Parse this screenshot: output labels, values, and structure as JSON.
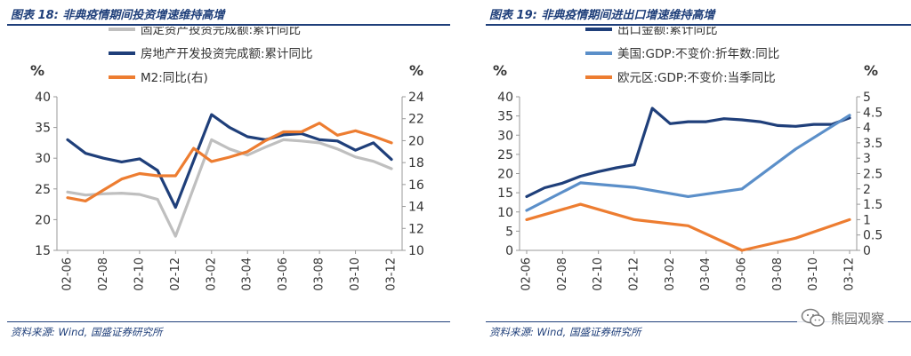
{
  "left": {
    "title": "图表 18:  非典疫情期间投资增速维持高增",
    "source": "资料来源:  Wind,  国盛证券研究所"
  },
  "right": {
    "title": "图表 19:  非典疫情期间进出口增速维持高增",
    "source": "资料来源:  Wind,  国盛证券研究所"
  },
  "watermark": {
    "text": "熊园观察",
    "icon": "wechat-icon"
  },
  "colors": {
    "navy": "#1f3f7a",
    "grey": "#bfbfbf",
    "orange": "#ed7d31",
    "lightblue": "#5b8fc9",
    "text": "#333333"
  },
  "chart_data": [
    {
      "type": "line",
      "x": [
        "02-06",
        "02-07",
        "02-08",
        "02-09",
        "02-10",
        "02-11",
        "02-12",
        "03-01",
        "03-02",
        "03-03",
        "03-04",
        "03-05",
        "03-06",
        "03-07",
        "03-08",
        "03-09",
        "03-10",
        "03-11",
        "03-12"
      ],
      "xticks": [
        "02-06",
        "02-08",
        "02-10",
        "02-12",
        "03-02",
        "03-04",
        "03-06",
        "03-08",
        "03-10",
        "03-12"
      ],
      "ylabel": "%",
      "y2label": "%",
      "ylim": [
        15,
        40
      ],
      "yticks": [
        15,
        20,
        25,
        30,
        35,
        40
      ],
      "y2lim": [
        10,
        24
      ],
      "y2ticks": [
        10,
        12,
        14,
        16,
        18,
        20,
        22,
        24
      ],
      "legend_position": "top-center",
      "series": [
        {
          "name": "固定资产投资完成额:累计同比",
          "axis": "left",
          "color": "#bfbfbf",
          "values": [
            24.5,
            24.0,
            24.2,
            24.3,
            24.1,
            23.3,
            17.3,
            null,
            33.0,
            31.5,
            30.5,
            31.8,
            33.0,
            32.8,
            32.5,
            31.5,
            30.2,
            29.5,
            28.3
          ]
        },
        {
          "name": "房地产开发投资完成额:累计同比",
          "axis": "left",
          "color": "#1f3f7a",
          "values": [
            33.0,
            30.8,
            30.0,
            29.4,
            29.9,
            28.0,
            22.0,
            null,
            37.1,
            35.0,
            33.5,
            33.0,
            33.8,
            34.0,
            33.0,
            32.8,
            31.3,
            32.5,
            29.8
          ]
        },
        {
          "name": "M2:同比(右)",
          "axis": "right",
          "color": "#ed7d31",
          "values": [
            14.8,
            14.5,
            15.5,
            16.5,
            17.0,
            16.8,
            16.8,
            19.3,
            18.1,
            18.5,
            19.0,
            20.0,
            20.8,
            20.8,
            21.6,
            20.5,
            20.9,
            20.4,
            19.8
          ]
        }
      ]
    },
    {
      "type": "line",
      "x": [
        "02-06",
        "02-07",
        "02-08",
        "02-09",
        "02-10",
        "02-11",
        "02-12",
        "03-01",
        "03-02",
        "03-03",
        "03-04",
        "03-05",
        "03-06",
        "03-07",
        "03-08",
        "03-09",
        "03-10",
        "03-11",
        "03-12"
      ],
      "xticks": [
        "02-06",
        "02-08",
        "02-10",
        "02-12",
        "03-02",
        "03-04",
        "03-06",
        "03-08",
        "03-10",
        "03-12"
      ],
      "ylabel": "%",
      "y2label": "%",
      "ylim": [
        0,
        40
      ],
      "yticks": [
        0,
        5,
        10,
        15,
        20,
        25,
        30,
        35,
        40
      ],
      "y2lim": [
        0,
        5
      ],
      "y2ticks": [
        0,
        0.5,
        1,
        1.5,
        2,
        2.5,
        3,
        3.5,
        4,
        4.5,
        5
      ],
      "legend_position": "top-center",
      "series": [
        {
          "name": "出口金额:累计同比",
          "axis": "left",
          "color": "#1f3f7a",
          "values": [
            14.0,
            16.3,
            17.5,
            19.3,
            20.5,
            21.5,
            22.3,
            37.0,
            33.0,
            33.5,
            33.5,
            34.3,
            34.0,
            33.5,
            32.5,
            32.3,
            32.8,
            32.8,
            34.5
          ]
        },
        {
          "name": "美国:GDP:不变价:折年数:同比",
          "axis": "right",
          "color": "#5b8fc9",
          "points": [
            [
              "02-06",
              1.3
            ],
            [
              "02-09",
              2.2
            ],
            [
              "02-12",
              2.05
            ],
            [
              "03-03",
              1.75
            ],
            [
              "03-06",
              2.0
            ],
            [
              "03-09",
              3.3
            ],
            [
              "03-12",
              4.4
            ]
          ]
        },
        {
          "name": "欧元区:GDP:不变价:当季同比",
          "axis": "right",
          "color": "#ed7d31",
          "points": [
            [
              "02-06",
              1.0
            ],
            [
              "02-09",
              1.5
            ],
            [
              "02-12",
              1.0
            ],
            [
              "03-03",
              0.8
            ],
            [
              "03-06",
              0.0
            ],
            [
              "03-09",
              0.4
            ],
            [
              "03-12",
              1.0
            ]
          ]
        }
      ]
    }
  ]
}
